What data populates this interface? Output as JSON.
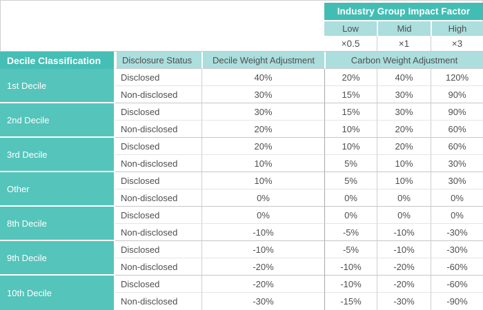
{
  "colors": {
    "header_teal": "#45BEB5",
    "group_teal": "#55C4BB",
    "light_teal_header": "#ABDEDD",
    "stripe_row": "#E3F2F3",
    "text": "#4E4E4E",
    "border": "#CDCDCD"
  },
  "impact_factor": {
    "title": "Industry Group Impact Factor",
    "levels": [
      {
        "label": "Low",
        "multiplier": "×0.5"
      },
      {
        "label": "Mid",
        "multiplier": "×1"
      },
      {
        "label": "High",
        "multiplier": "×3"
      }
    ]
  },
  "table": {
    "headers": {
      "decile": "Decile Classification",
      "disclosure": "Disclosure Status",
      "decile_weight": "Decile Weight Adjustment",
      "carbon_weight": "Carbon Weight Adjustment"
    },
    "groups": [
      {
        "decile": "1st Decile",
        "rows": [
          {
            "status": "Disclosed",
            "decile_weight": "40%",
            "carbon": [
              "20%",
              "40%",
              "120%"
            ]
          },
          {
            "status": "Non-disclosed",
            "decile_weight": "30%",
            "carbon": [
              "15%",
              "30%",
              "90%"
            ]
          }
        ]
      },
      {
        "decile": "2nd Decile",
        "rows": [
          {
            "status": "Disclosed",
            "decile_weight": "30%",
            "carbon": [
              "15%",
              "30%",
              "90%"
            ]
          },
          {
            "status": "Non-disclosed",
            "decile_weight": "20%",
            "carbon": [
              "10%",
              "20%",
              "60%"
            ]
          }
        ]
      },
      {
        "decile": "3rd Decile",
        "rows": [
          {
            "status": "Disclosed",
            "decile_weight": "20%",
            "carbon": [
              "10%",
              "20%",
              "60%"
            ]
          },
          {
            "status": "Non-disclosed",
            "decile_weight": "10%",
            "carbon": [
              "5%",
              "10%",
              "30%"
            ]
          }
        ]
      },
      {
        "decile": "Other",
        "rows": [
          {
            "status": "Disclosed",
            "decile_weight": "10%",
            "carbon": [
              "5%",
              "10%",
              "30%"
            ]
          },
          {
            "status": "Non-disclosed",
            "decile_weight": "0%",
            "carbon": [
              "0%",
              "0%",
              "0%"
            ]
          }
        ]
      },
      {
        "decile": "8th Decile",
        "rows": [
          {
            "status": "Disclosed",
            "decile_weight": "0%",
            "carbon": [
              "0%",
              "0%",
              "0%"
            ]
          },
          {
            "status": "Non-disclosed",
            "decile_weight": "-10%",
            "carbon": [
              "-5%",
              "-10%",
              "-30%"
            ]
          }
        ]
      },
      {
        "decile": "9th Decile",
        "rows": [
          {
            "status": "Disclosed",
            "decile_weight": "-10%",
            "carbon": [
              "-5%",
              "-10%",
              "-30%"
            ]
          },
          {
            "status": "Non-disclosed",
            "decile_weight": "-20%",
            "carbon": [
              "-10%",
              "-20%",
              "-60%"
            ]
          }
        ]
      },
      {
        "decile": "10th Decile",
        "rows": [
          {
            "status": "Disclosed",
            "decile_weight": "-20%",
            "carbon": [
              "-10%",
              "-20%",
              "-60%"
            ]
          },
          {
            "status": "Non-disclosed",
            "decile_weight": "-30%",
            "carbon": [
              "-15%",
              "-30%",
              "-90%"
            ]
          }
        ]
      }
    ]
  }
}
